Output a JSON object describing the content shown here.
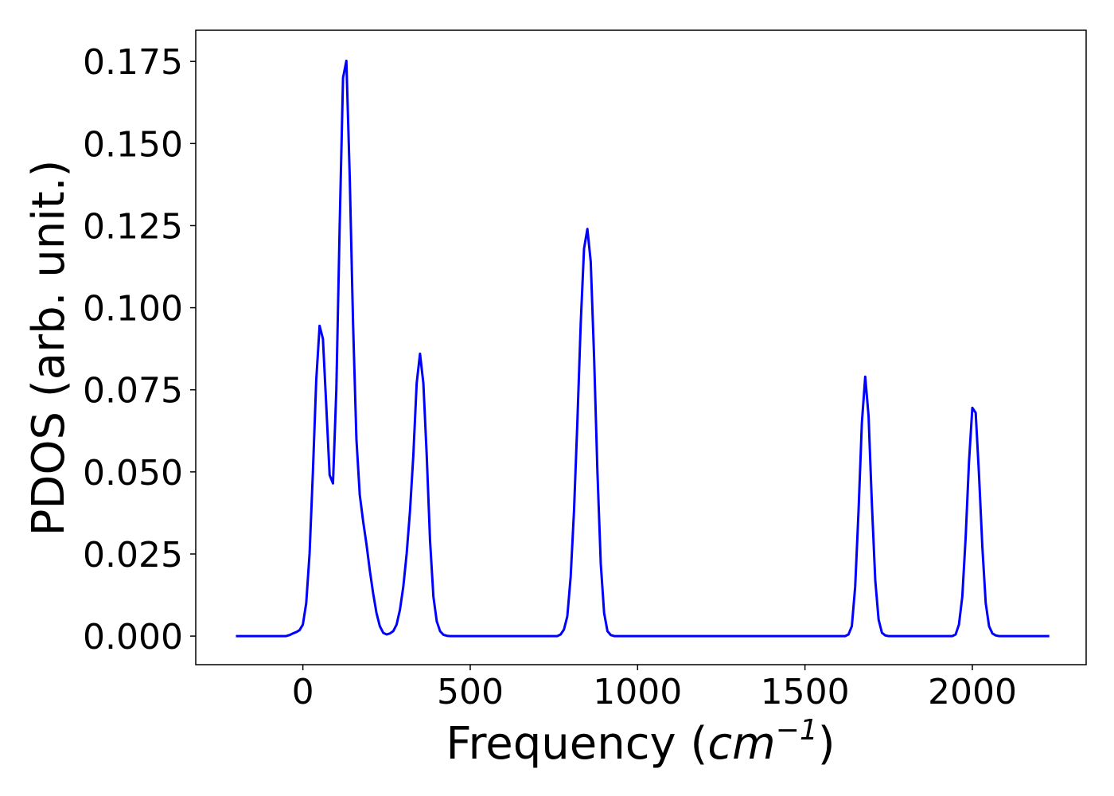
{
  "chart_data": {
    "type": "line",
    "title": "",
    "xlabel_prefix": "Frequency (",
    "xlabel_math": "cm",
    "xlabel_sup": "−1",
    "xlabel_suffix": ")",
    "ylabel": "PDOS (arb. unit.)",
    "xlim": [
      -320,
      2340
    ],
    "ylim": [
      -0.0087,
      0.1845
    ],
    "xticks": [
      0,
      500,
      1000,
      1500,
      2000
    ],
    "xtick_labels": [
      "0",
      "500",
      "1000",
      "1500",
      "2000"
    ],
    "yticks": [
      0.0,
      0.025,
      0.05,
      0.075,
      0.1,
      0.125,
      0.15,
      0.175
    ],
    "ytick_labels": [
      "0.000",
      "0.025",
      "0.050",
      "0.075",
      "0.100",
      "0.125",
      "0.150",
      "0.175"
    ],
    "grid": false,
    "legend": "none",
    "line_color": "#0000ff",
    "series": [
      {
        "x": [
          -200,
          -50,
          -40,
          -30,
          -20,
          -10,
          0,
          10,
          20,
          30,
          40,
          50,
          60,
          70,
          80,
          90,
          100,
          110,
          120,
          130,
          140,
          150,
          160,
          170,
          180,
          190,
          200,
          210,
          220,
          230,
          240,
          250,
          260,
          270,
          280,
          290,
          300,
          310,
          320,
          330,
          340,
          350,
          360,
          370,
          380,
          390,
          400,
          410,
          420,
          430,
          440,
          450,
          460,
          470,
          480,
          490,
          500,
          510,
          520,
          760,
          770,
          780,
          790,
          800,
          810,
          820,
          830,
          840,
          850,
          860,
          870,
          880,
          890,
          900,
          910,
          920,
          930,
          940,
          950,
          960,
          970,
          980,
          1610,
          1620,
          1630,
          1640,
          1650,
          1660,
          1670,
          1680,
          1690,
          1700,
          1710,
          1720,
          1730,
          1740,
          1750,
          1760,
          1940,
          1950,
          1960,
          1970,
          1980,
          1990,
          2000,
          2010,
          2020,
          2030,
          2040,
          2050,
          2060,
          2070,
          2080,
          2090,
          2230
        ],
        "y": [
          0,
          0,
          0.0003,
          0.0008,
          0.0012,
          0.0018,
          0.0035,
          0.01,
          0.025,
          0.05,
          0.078,
          0.0945,
          0.0905,
          0.07,
          0.049,
          0.0465,
          0.075,
          0.125,
          0.17,
          0.1752,
          0.14,
          0.095,
          0.06,
          0.043,
          0.035,
          0.028,
          0.02,
          0.013,
          0.007,
          0.003,
          0.001,
          0.0005,
          0.0008,
          0.0015,
          0.0035,
          0.008,
          0.015,
          0.025,
          0.038,
          0.055,
          0.077,
          0.086,
          0.077,
          0.055,
          0.029,
          0.012,
          0.0045,
          0.0015,
          0.0004,
          0.0001,
          0,
          0,
          0,
          0,
          0,
          0,
          0,
          0,
          0,
          0,
          0.0005,
          0.002,
          0.006,
          0.018,
          0.038,
          0.065,
          0.095,
          0.118,
          0.124,
          0.114,
          0.085,
          0.05,
          0.022,
          0.007,
          0.0015,
          0.0003,
          0,
          0,
          0,
          0,
          0,
          0,
          0,
          0,
          0.0005,
          0.003,
          0.015,
          0.038,
          0.065,
          0.079,
          0.067,
          0.04,
          0.017,
          0.005,
          0.001,
          0.0002,
          0,
          0,
          0,
          0.0005,
          0.0035,
          0.012,
          0.03,
          0.053,
          0.0695,
          0.068,
          0.049,
          0.027,
          0.01,
          0.003,
          0.0008,
          0.0002,
          0,
          0,
          0
        ]
      }
    ]
  }
}
